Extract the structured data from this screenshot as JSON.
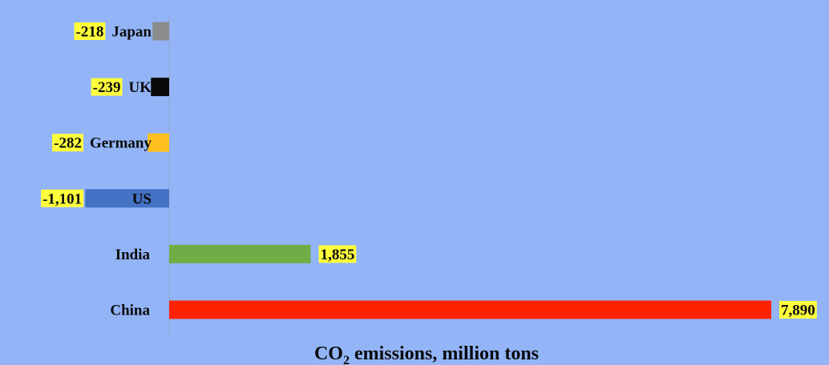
{
  "chart_data": {
    "type": "bar",
    "orientation": "horizontal",
    "categories": [
      "Japan",
      "UK",
      "Germany",
      "US",
      "India",
      "China"
    ],
    "values": [
      -218,
      -239,
      -282,
      -1101,
      1855,
      7890
    ],
    "value_labels": [
      "-218",
      "-239",
      "-282",
      "-1,101",
      "1,855",
      "7,890"
    ],
    "bar_colors": [
      "#8C8C8C",
      "#0A0A0A",
      "#FFC11F",
      "#4472C4",
      "#70AD47",
      "#FF2200"
    ],
    "title": "CO2 emissions, million tons",
    "title_main": "CO",
    "title_sub": "2",
    "title_rest": " emissions, million tons",
    "xlim": [
      -2000,
      8000
    ],
    "grid": false,
    "legend": "none",
    "colors": {
      "background": "#93B5F8",
      "label_highlight": "#FFFF3C",
      "axis": "#8FA6CC"
    }
  }
}
